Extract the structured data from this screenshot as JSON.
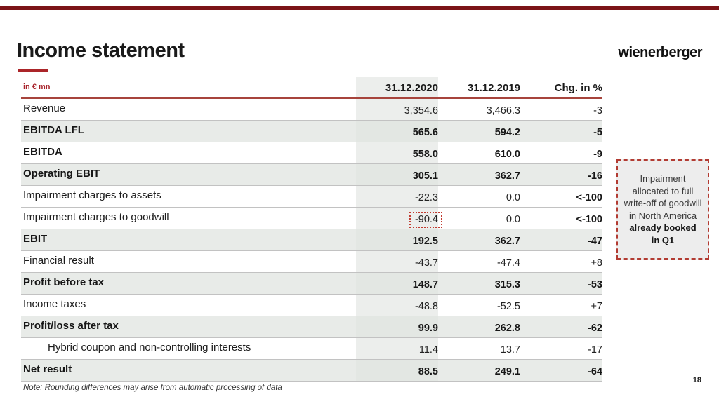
{
  "slide": {
    "title": "Income statement",
    "logo": "wienerberger",
    "page_number": "18",
    "note": "Note: Rounding differences may arise from automatic processing of data"
  },
  "table": {
    "unit_label": "in € mn",
    "columns": [
      "31.12.2020",
      "31.12.2019",
      "Chg. in %"
    ],
    "rows": [
      {
        "label": "Revenue",
        "v2020": "3,354.6",
        "v2019": "3,466.3",
        "chg": "-3",
        "bold": false,
        "shaded": false,
        "chg_bold": false,
        "boxed": false,
        "indent": false
      },
      {
        "label": "EBITDA LFL",
        "v2020": "565.6",
        "v2019": "594.2",
        "chg": "-5",
        "bold": true,
        "shaded": true,
        "chg_bold": false,
        "boxed": false,
        "indent": false
      },
      {
        "label": "EBITDA",
        "v2020": "558.0",
        "v2019": "610.0",
        "chg": "-9",
        "bold": true,
        "shaded": false,
        "chg_bold": false,
        "boxed": false,
        "indent": false
      },
      {
        "label": "Operating EBIT",
        "v2020": "305.1",
        "v2019": "362.7",
        "chg": "-16",
        "bold": true,
        "shaded": true,
        "chg_bold": false,
        "boxed": false,
        "indent": false
      },
      {
        "label": "Impairment charges to assets",
        "v2020": "-22.3",
        "v2019": "0.0",
        "chg": "<-100",
        "bold": false,
        "shaded": false,
        "chg_bold": true,
        "boxed": false,
        "indent": false
      },
      {
        "label": "Impairment charges to goodwill",
        "v2020": "-90.4",
        "v2019": "0.0",
        "chg": "<-100",
        "bold": false,
        "shaded": false,
        "chg_bold": true,
        "boxed": true,
        "indent": false
      },
      {
        "label": "EBIT",
        "v2020": "192.5",
        "v2019": "362.7",
        "chg": "-47",
        "bold": true,
        "shaded": true,
        "chg_bold": false,
        "boxed": false,
        "indent": false
      },
      {
        "label": "Financial result",
        "v2020": "-43.7",
        "v2019": "-47.4",
        "chg": "+8",
        "bold": false,
        "shaded": false,
        "chg_bold": false,
        "boxed": false,
        "indent": false
      },
      {
        "label": "Profit before tax",
        "v2020": "148.7",
        "v2019": "315.3",
        "chg": "-53",
        "bold": true,
        "shaded": true,
        "chg_bold": false,
        "boxed": false,
        "indent": false
      },
      {
        "label": "Income taxes",
        "v2020": "-48.8",
        "v2019": "-52.5",
        "chg": "+7",
        "bold": false,
        "shaded": false,
        "chg_bold": false,
        "boxed": false,
        "indent": false
      },
      {
        "label": "Profit/loss after tax",
        "v2020": "99.9",
        "v2019": "262.8",
        "chg": "-62",
        "bold": true,
        "shaded": true,
        "chg_bold": false,
        "boxed": false,
        "indent": false
      },
      {
        "label": "Hybrid coupon and non-controlling interests",
        "v2020": "11.4",
        "v2019": "13.7",
        "chg": "-17",
        "bold": false,
        "shaded": false,
        "chg_bold": false,
        "boxed": false,
        "indent": true
      },
      {
        "label": "Net result",
        "v2020": "88.5",
        "v2019": "249.1",
        "chg": "-64",
        "bold": true,
        "shaded": true,
        "chg_bold": false,
        "boxed": false,
        "indent": false
      }
    ]
  },
  "annotation": {
    "text": "Impairment allocated to full write-off of goodwill in North America",
    "bold_text": "already booked in Q1"
  },
  "colors": {
    "accent_red": "#a8232b",
    "top_bar_red": "#7b1417",
    "rule_red": "#a7443c",
    "dotted_box_red": "#c13b30",
    "shaded_row": "#e8ebe8",
    "column_band": "#eceeec"
  }
}
